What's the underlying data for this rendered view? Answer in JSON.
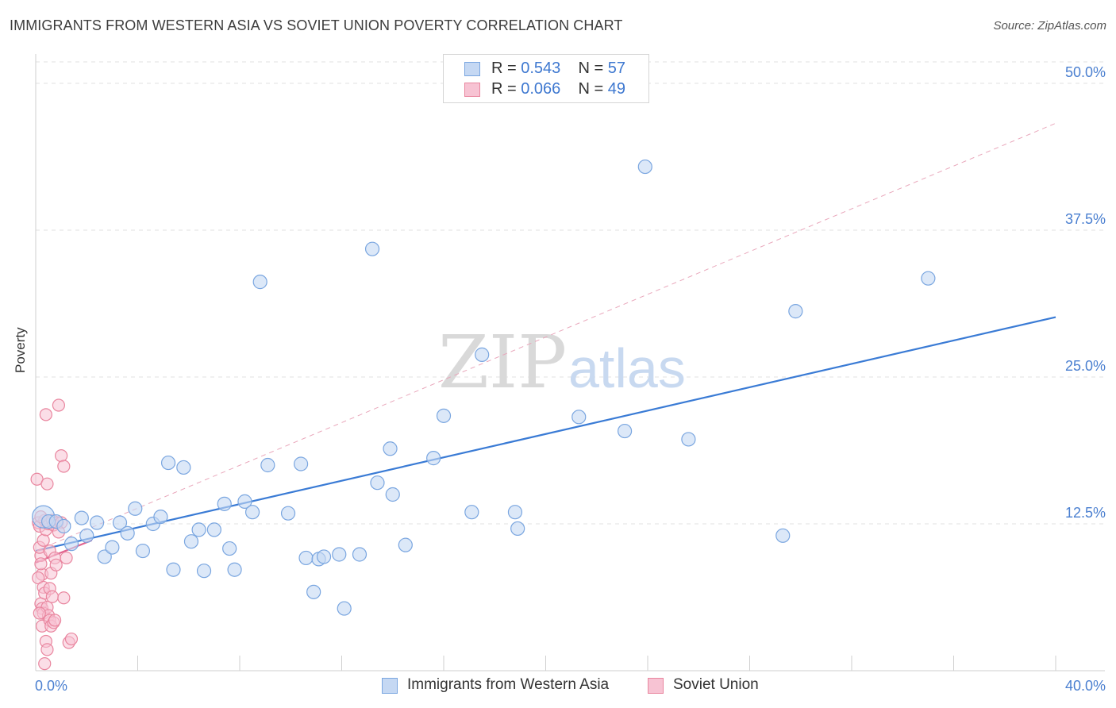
{
  "title": "IMMIGRANTS FROM WESTERN ASIA VS SOVIET UNION POVERTY CORRELATION CHART",
  "source": "Source: ZipAtlas.com",
  "watermark": {
    "zip": "ZIP",
    "atlas": "atlas"
  },
  "colors": {
    "blue_fill": "#c5d8f3",
    "blue_stroke": "#7aa6e0",
    "blue_line": "#3a7bd5",
    "pink_fill": "#f7c3d3",
    "pink_stroke": "#e9869f",
    "pink_line": "#e0628f",
    "grid": "#e2e2e2",
    "tick_text": "#4a7fd0"
  },
  "stats": {
    "rows": [
      {
        "r_label": "R = ",
        "r_value": "0.543",
        "n_label": "N = ",
        "n_value": "57"
      },
      {
        "r_label": "R = ",
        "r_value": "0.066",
        "n_label": "N = ",
        "n_value": "49"
      }
    ]
  },
  "legend": {
    "series1": "Immigrants from Western Asia",
    "series2": "Soviet Union"
  },
  "chart_data": {
    "type": "scatter",
    "title": "IMMIGRANTS FROM WESTERN ASIA VS SOVIET UNION POVERTY CORRELATION CHART",
    "xlabel": "",
    "ylabel": "Poverty",
    "xlim": [
      0,
      40
    ],
    "ylim": [
      0,
      50
    ],
    "x_tick_labels": [
      "0.0%",
      "40.0%"
    ],
    "y_ticks": [
      12.5,
      25.0,
      37.5,
      50.0
    ],
    "y_tick_labels": [
      "12.5%",
      "25.0%",
      "37.5%",
      "50.0%"
    ],
    "grid": true,
    "series": [
      {
        "name": "Immigrants from Western Asia",
        "color": "#7aa6e0",
        "points": [
          [
            0.3,
            13.1
          ],
          [
            0.5,
            12.7
          ],
          [
            0.8,
            12.7
          ],
          [
            1.1,
            12.3
          ],
          [
            1.4,
            10.8
          ],
          [
            1.8,
            13.0
          ],
          [
            2.0,
            11.5
          ],
          [
            2.4,
            12.6
          ],
          [
            2.7,
            9.7
          ],
          [
            3.0,
            10.5
          ],
          [
            3.3,
            12.6
          ],
          [
            3.6,
            11.7
          ],
          [
            3.9,
            13.8
          ],
          [
            4.2,
            10.2
          ],
          [
            4.6,
            12.5
          ],
          [
            4.9,
            13.1
          ],
          [
            5.2,
            17.7
          ],
          [
            5.4,
            8.6
          ],
          [
            5.8,
            17.3
          ],
          [
            6.1,
            11.0
          ],
          [
            6.4,
            12.0
          ],
          [
            6.6,
            8.5
          ],
          [
            7.0,
            12.0
          ],
          [
            7.4,
            14.2
          ],
          [
            7.6,
            10.4
          ],
          [
            7.8,
            8.6
          ],
          [
            8.2,
            14.4
          ],
          [
            8.5,
            13.5
          ],
          [
            8.8,
            33.1
          ],
          [
            9.1,
            17.5
          ],
          [
            9.9,
            13.4
          ],
          [
            10.4,
            17.6
          ],
          [
            10.6,
            9.6
          ],
          [
            10.9,
            6.7
          ],
          [
            11.1,
            9.5
          ],
          [
            11.3,
            9.7
          ],
          [
            11.9,
            9.9
          ],
          [
            12.1,
            5.3
          ],
          [
            12.7,
            9.9
          ],
          [
            13.2,
            35.9
          ],
          [
            13.4,
            16.0
          ],
          [
            13.9,
            18.9
          ],
          [
            14.0,
            15.0
          ],
          [
            14.5,
            10.7
          ],
          [
            15.6,
            18.1
          ],
          [
            16.0,
            21.7
          ],
          [
            17.1,
            13.5
          ],
          [
            17.5,
            26.9
          ],
          [
            18.8,
            13.5
          ],
          [
            18.9,
            12.1
          ],
          [
            21.3,
            21.6
          ],
          [
            23.1,
            20.4
          ],
          [
            23.9,
            42.9
          ],
          [
            25.6,
            19.7
          ],
          [
            29.8,
            30.6
          ],
          [
            29.3,
            11.5
          ],
          [
            35.0,
            33.4
          ]
        ],
        "trend": [
          [
            0,
            10.2
          ],
          [
            40,
            30.1
          ]
        ]
      },
      {
        "name": "Soviet Union",
        "color": "#e9869f",
        "points": [
          [
            0.05,
            16.3
          ],
          [
            0.1,
            12.6
          ],
          [
            0.15,
            12.3
          ],
          [
            0.2,
            9.8
          ],
          [
            0.25,
            8.2
          ],
          [
            0.1,
            7.9
          ],
          [
            0.3,
            7.1
          ],
          [
            0.2,
            5.7
          ],
          [
            0.25,
            5.3
          ],
          [
            0.3,
            4.9
          ],
          [
            0.35,
            12.8
          ],
          [
            0.15,
            10.5
          ],
          [
            0.2,
            9.1
          ],
          [
            0.3,
            11.1
          ],
          [
            0.4,
            12.0
          ],
          [
            0.35,
            6.6
          ],
          [
            0.25,
            3.8
          ],
          [
            0.4,
            2.5
          ],
          [
            0.45,
            1.8
          ],
          [
            0.35,
            0.6
          ],
          [
            0.4,
            21.8
          ],
          [
            0.45,
            15.9
          ],
          [
            0.5,
            12.5
          ],
          [
            0.55,
            10.2
          ],
          [
            0.6,
            8.3
          ],
          [
            0.55,
            7.0
          ],
          [
            0.45,
            5.4
          ],
          [
            0.5,
            4.7
          ],
          [
            0.55,
            4.3
          ],
          [
            0.6,
            3.8
          ],
          [
            0.65,
            12.8
          ],
          [
            0.7,
            12.4
          ],
          [
            0.75,
            9.6
          ],
          [
            0.8,
            9.0
          ],
          [
            0.85,
            12.6
          ],
          [
            0.65,
            6.3
          ],
          [
            0.7,
            4.1
          ],
          [
            0.75,
            4.3
          ],
          [
            0.9,
            22.6
          ],
          [
            1.0,
            18.3
          ],
          [
            1.1,
            17.4
          ],
          [
            1.2,
            9.6
          ],
          [
            1.3,
            2.4
          ],
          [
            1.4,
            2.7
          ],
          [
            1.0,
            12.6
          ],
          [
            0.9,
            11.8
          ],
          [
            1.1,
            6.2
          ],
          [
            0.15,
            4.9
          ],
          [
            0.2,
            13.1
          ]
        ],
        "trend": [
          [
            0,
            9.2
          ],
          [
            2.2,
            11.1
          ]
        ]
      }
    ],
    "diagonal_reference": [
      [
        0,
        10.2
      ],
      [
        40,
        46.6
      ]
    ]
  }
}
